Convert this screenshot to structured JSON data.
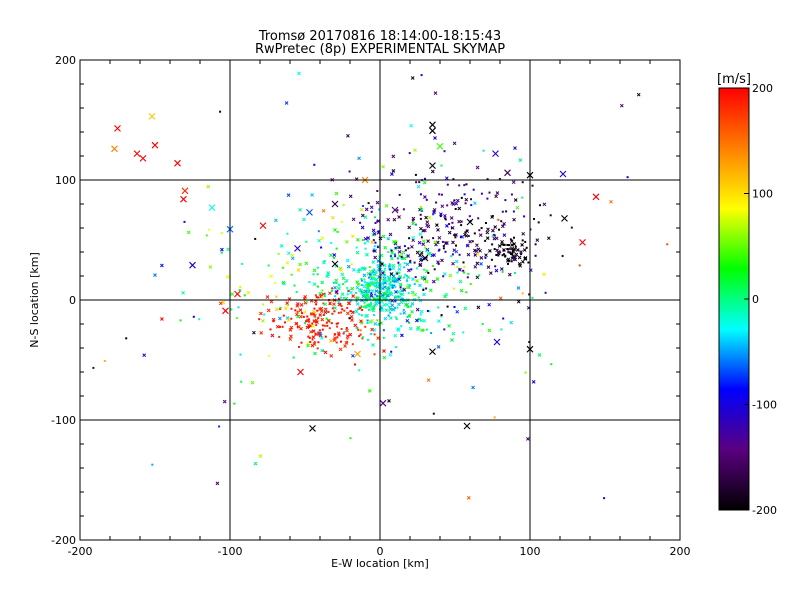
{
  "chart_data": {
    "type": "scatter",
    "title": "Tromsø 20170816 18:14:00-18:15:43",
    "subtitle": "RwPretec (8p) EXPERIMENTAL SKYMAP",
    "xlabel": "E-W location [km]",
    "ylabel": "N-S location [km]",
    "xlim": [
      -200,
      200
    ],
    "ylim": [
      -200,
      200
    ],
    "xticks": [
      "-200",
      "-100",
      "0",
      "100",
      "200"
    ],
    "yticks": [
      "-200",
      "-100",
      "0",
      "100",
      "200"
    ],
    "grid_at": [
      -100,
      0,
      100
    ],
    "colorbar": {
      "label": "[m/s]",
      "range": [
        -200,
        200
      ],
      "ticks": [
        "200",
        "100",
        "0",
        "-100",
        "-200"
      ],
      "colormap": [
        "#000000",
        "#5a0080",
        "#0000ff",
        "#00ffff",
        "#00ff00",
        "#ffff00",
        "#ff7f00",
        "#ff0000"
      ]
    },
    "markers": {
      "small": "dot",
      "large": "x"
    },
    "clusters": [
      {
        "cx": 2,
        "cy": 10,
        "sx": 11,
        "sy": 14,
        "n": 260,
        "vmin": -60,
        "vmax": 10
      },
      {
        "cx": -8,
        "cy": 8,
        "sx": 28,
        "sy": 22,
        "n": 180,
        "vmin": -40,
        "vmax": 40
      },
      {
        "cx": -45,
        "cy": -15,
        "sx": 16,
        "sy": 12,
        "n": 150,
        "vmin": 175,
        "vmax": 200
      },
      {
        "cx": -25,
        "cy": -30,
        "sx": 12,
        "sy": 10,
        "n": 40,
        "vmin": 170,
        "vmax": 200
      },
      {
        "cx": 85,
        "cy": 40,
        "sx": 6,
        "sy": 5,
        "n": 60,
        "vmin": -200,
        "vmax": -190
      },
      {
        "cx": 50,
        "cy": 55,
        "sx": 30,
        "sy": 25,
        "n": 170,
        "vmin": -200,
        "vmax": -150
      },
      {
        "cx": 35,
        "cy": 60,
        "sx": 28,
        "sy": 30,
        "n": 120,
        "vmin": -150,
        "vmax": -100
      },
      {
        "cx": 15,
        "cy": 20,
        "sx": 40,
        "sy": 35,
        "n": 120,
        "vmin": -110,
        "vmax": 120
      },
      {
        "cx": -60,
        "cy": 20,
        "sx": 40,
        "sy": 40,
        "n": 80,
        "vmin": -60,
        "vmax": 110
      },
      {
        "cx": 0,
        "cy": 0,
        "sx": 100,
        "sy": 80,
        "n": 90,
        "vmin": -200,
        "vmax": 200
      }
    ],
    "x_markers": [
      {
        "x": -175,
        "y": 143,
        "v": 200
      },
      {
        "x": -177,
        "y": 126,
        "v": 140
      },
      {
        "x": -162,
        "y": 122,
        "v": 200
      },
      {
        "x": -158,
        "y": 118,
        "v": 200
      },
      {
        "x": -150,
        "y": 129,
        "v": 200
      },
      {
        "x": -152,
        "y": 153,
        "v": 110
      },
      {
        "x": -135,
        "y": 114,
        "v": 200
      },
      {
        "x": -130,
        "y": 91,
        "v": 180
      },
      {
        "x": -131,
        "y": 84,
        "v": 200
      },
      {
        "x": -112,
        "y": 77,
        "v": -20
      },
      {
        "x": -125,
        "y": 29,
        "v": -110
      },
      {
        "x": -100,
        "y": 59,
        "v": -60
      },
      {
        "x": -95,
        "y": 5,
        "v": 200
      },
      {
        "x": -103,
        "y": -9,
        "v": 200
      },
      {
        "x": -78,
        "y": 62,
        "v": 200
      },
      {
        "x": -55,
        "y": 43,
        "v": -110
      },
      {
        "x": -47,
        "y": 73,
        "v": -70
      },
      {
        "x": -30,
        "y": 80,
        "v": -170
      },
      {
        "x": -53,
        "y": -60,
        "v": 200
      },
      {
        "x": -45,
        "y": -107,
        "v": -200
      },
      {
        "x": 2,
        "y": -86,
        "v": -140
      },
      {
        "x": -15,
        "y": -45,
        "v": 130
      },
      {
        "x": 35,
        "y": 146,
        "v": -200
      },
      {
        "x": 35,
        "y": 141,
        "v": -200
      },
      {
        "x": 35,
        "y": 112,
        "v": -200
      },
      {
        "x": 40,
        "y": 128,
        "v": 40
      },
      {
        "x": 77,
        "y": 122,
        "v": -110
      },
      {
        "x": 85,
        "y": 106,
        "v": -160
      },
      {
        "x": 100,
        "y": 104,
        "v": -200
      },
      {
        "x": 122,
        "y": 105,
        "v": -110
      },
      {
        "x": 144,
        "y": 86,
        "v": 200
      },
      {
        "x": 135,
        "y": 48,
        "v": 200
      },
      {
        "x": 123,
        "y": 68,
        "v": -200
      },
      {
        "x": 100,
        "y": -41,
        "v": -200
      },
      {
        "x": 58,
        "y": -105,
        "v": -200
      },
      {
        "x": 35,
        "y": -43,
        "v": -200
      },
      {
        "x": 78,
        "y": -35,
        "v": -100
      },
      {
        "x": -10,
        "y": 100,
        "v": 140
      },
      {
        "x": 10,
        "y": 75,
        "v": -150
      },
      {
        "x": 60,
        "y": 65,
        "v": -200
      },
      {
        "x": 30,
        "y": 35,
        "v": -200
      },
      {
        "x": -30,
        "y": 30,
        "v": -200
      }
    ]
  }
}
